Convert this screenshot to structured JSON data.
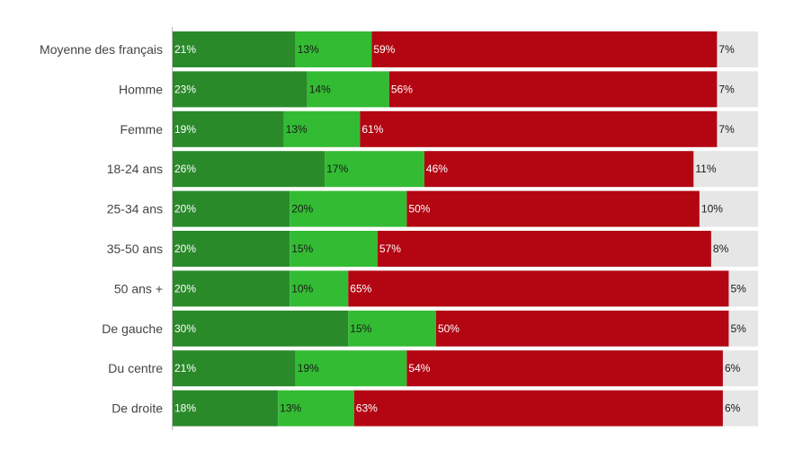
{
  "chart_data": {
    "type": "bar",
    "orientation": "horizontal",
    "stacked": true,
    "normalized": true,
    "categories": [
      "Moyenne des français",
      "Homme",
      "Femme",
      "18-24 ans",
      "25-34 ans",
      "35-50 ans",
      "50 ans +",
      "De gauche",
      "Du centre",
      "De droite"
    ],
    "series": [
      {
        "values": [
          21,
          23,
          19,
          26,
          20,
          20,
          20,
          30,
          21,
          18
        ],
        "color": "#2a8a2a",
        "label_color": "#ffffff"
      },
      {
        "values": [
          13,
          14,
          13,
          17,
          20,
          15,
          10,
          15,
          19,
          13
        ],
        "color": "#33bb33",
        "label_color": "#1a1a1a"
      },
      {
        "values": [
          59,
          56,
          61,
          46,
          50,
          57,
          65,
          50,
          54,
          63
        ],
        "color": "#b30612",
        "label_color": "#ffffff"
      },
      {
        "values": [
          7,
          7,
          7,
          11,
          10,
          8,
          5,
          5,
          6,
          6
        ],
        "color": "#e6e6e6",
        "label_color": "#1a1a1a"
      }
    ],
    "value_suffix": "%",
    "xlim": [
      0,
      100
    ],
    "grid": false,
    "legend": "none",
    "title": "",
    "xlabel": "",
    "ylabel": ""
  }
}
